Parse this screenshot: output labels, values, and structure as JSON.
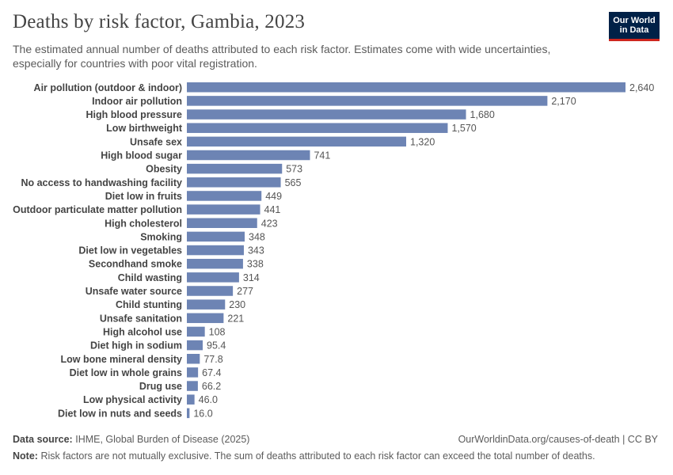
{
  "header": {
    "title": "Deaths by risk factor, Gambia, 2023",
    "subtitle": "The estimated annual number of deaths attributed to each risk factor. Estimates come with wide uncertainties, especially for countries with poor vital registration."
  },
  "logo": {
    "line1": "Our World",
    "line2": "in Data"
  },
  "footer": {
    "source_label": "Data source:",
    "source_text": "IHME, Global Burden of Disease (2025)",
    "url": "OurWorldinData.org/causes-of-death | CC BY",
    "note_label": "Note:",
    "note_text": "Risk factors are not mutually exclusive. The sum of deaths attributed to each risk factor can exceed the total number of deaths."
  },
  "colors": {
    "bar": "#6d84b4",
    "label": "#444444",
    "value": "#555555"
  },
  "chart_data": {
    "type": "bar",
    "orientation": "horizontal",
    "title": "Deaths by risk factor, Gambia, 2023",
    "categories": [
      "Air pollution (outdoor & indoor)",
      "Indoor air pollution",
      "High blood pressure",
      "Low birthweight",
      "Unsafe sex",
      "High blood sugar",
      "Obesity",
      "No access to handwashing facility",
      "Diet low in fruits",
      "Outdoor particulate matter pollution",
      "High cholesterol",
      "Smoking",
      "Diet low in vegetables",
      "Secondhand smoke",
      "Child wasting",
      "Unsafe water source",
      "Child stunting",
      "Unsafe sanitation",
      "High alcohol use",
      "Diet high in sodium",
      "Low bone mineral density",
      "Diet low in whole grains",
      "Drug use",
      "Low physical activity",
      "Diet low in nuts and seeds"
    ],
    "values": [
      2640,
      2170,
      1680,
      1570,
      1320,
      741,
      573,
      565,
      449,
      441,
      423,
      348,
      343,
      338,
      314,
      277,
      230,
      221,
      108,
      95.4,
      77.8,
      67.4,
      66.2,
      46.0,
      16.0
    ],
    "value_labels": [
      "2,640",
      "2,170",
      "1,680",
      "1,570",
      "1,320",
      "741",
      "573",
      "565",
      "449",
      "441",
      "423",
      "348",
      "343",
      "338",
      "314",
      "277",
      "230",
      "221",
      "108",
      "95.4",
      "77.8",
      "67.4",
      "66.2",
      "46.0",
      "16.0"
    ],
    "xlim": [
      0,
      2640
    ],
    "xlabel": "",
    "ylabel": ""
  }
}
